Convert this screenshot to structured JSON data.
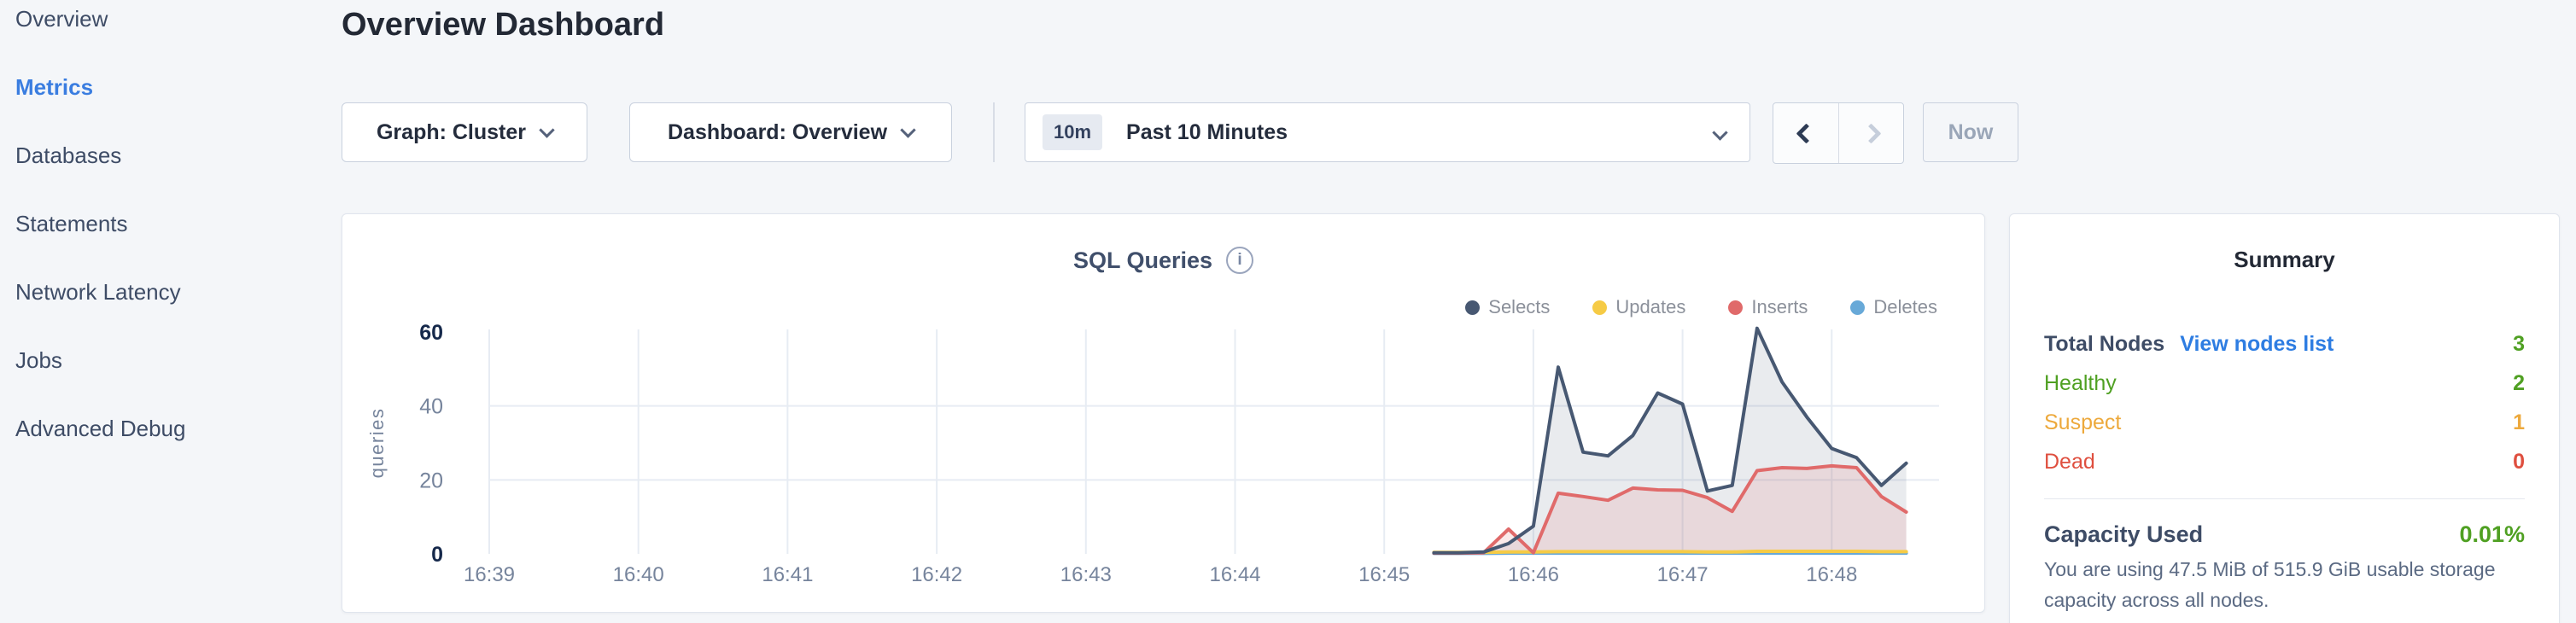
{
  "sidebar": {
    "items": [
      {
        "label": "Overview",
        "active": false
      },
      {
        "label": "Metrics",
        "active": true
      },
      {
        "label": "Databases",
        "active": false
      },
      {
        "label": "Statements",
        "active": false
      },
      {
        "label": "Network Latency",
        "active": false
      },
      {
        "label": "Jobs",
        "active": false
      },
      {
        "label": "Advanced Debug",
        "active": false
      }
    ]
  },
  "header": {
    "title": "Overview Dashboard"
  },
  "controls": {
    "graph_dropdown_label": "Graph: Cluster",
    "dashboard_dropdown_label": "Dashboard: Overview",
    "time_range": {
      "badge": "10m",
      "label": "Past 10 Minutes"
    },
    "now_button_label": "Now"
  },
  "chart": {
    "title": "SQL Queries",
    "info_glyph": "i"
  },
  "chart_data": {
    "type": "area",
    "title": "SQL Queries",
    "xlabel": "",
    "ylabel": "queries",
    "ylim": [
      0,
      60
    ],
    "yticks": [
      0,
      20,
      40,
      60
    ],
    "xticks": [
      "16:39",
      "16:40",
      "16:41",
      "16:42",
      "16:43",
      "16:44",
      "16:45",
      "16:46",
      "16:47",
      "16:48"
    ],
    "grid": true,
    "legend_position": "top-right",
    "x": [
      "16:45:20",
      "16:45:30",
      "16:45:40",
      "16:45:50",
      "16:46:00",
      "16:46:10",
      "16:46:20",
      "16:46:30",
      "16:46:40",
      "16:46:50",
      "16:47:00",
      "16:47:10",
      "16:47:20",
      "16:47:30",
      "16:47:40",
      "16:47:50",
      "16:48:00",
      "16:48:10",
      "16:48:20",
      "16:48:30"
    ],
    "series": [
      {
        "name": "Selects",
        "color": "#475872",
        "fill": "rgba(71,88,114,0.12)",
        "values": [
          0.3,
          0.3,
          0.5,
          2.8,
          7.5,
          50.5,
          27.5,
          26.5,
          32,
          43.5,
          40.5,
          17,
          18.5,
          61,
          46.5,
          37,
          28.5,
          26,
          18.5,
          24.5
        ]
      },
      {
        "name": "Updates",
        "color": "#f6cb45",
        "fill": "none",
        "values": [
          0.4,
          0.4,
          0.4,
          0.5,
          0.5,
          0.6,
          0.6,
          0.6,
          0.6,
          0.6,
          0.6,
          0.5,
          0.5,
          0.7,
          0.7,
          0.7,
          0.7,
          0.7,
          0.6,
          0.6
        ]
      },
      {
        "name": "Inserts",
        "color": "#e06a6a",
        "fill": "rgba(224,106,106,0.14)",
        "values": [
          0.2,
          0.2,
          0.3,
          6.7,
          0.3,
          16.4,
          15.5,
          14.5,
          17.8,
          17.3,
          17.2,
          15.2,
          11.5,
          22.5,
          23.3,
          23.1,
          23.8,
          23.3,
          15.5,
          11.3
        ]
      },
      {
        "name": "Deletes",
        "color": "#68a9d8",
        "fill": "none",
        "values": [
          0.15,
          0.15,
          0.15,
          0.2,
          0.2,
          0.2,
          0.2,
          0.2,
          0.2,
          0.2,
          0.2,
          0.2,
          0.2,
          0.2,
          0.2,
          0.2,
          0.2,
          0.2,
          0.2,
          0.2
        ]
      }
    ]
  },
  "summary": {
    "title": "Summary",
    "total_nodes": {
      "label": "Total Nodes",
      "link": "View nodes list",
      "value": "3"
    },
    "rows": [
      {
        "label": "Healthy",
        "value": "2"
      },
      {
        "label": "Suspect",
        "value": "1"
      },
      {
        "label": "Dead",
        "value": "0"
      }
    ],
    "capacity": {
      "label": "Capacity Used",
      "value": "0.01%",
      "description": "You are using 47.5 MiB of 515.9 GiB usable storage capacity across all nodes."
    }
  },
  "colors": {
    "accent": "#3a7de0",
    "link": "#2e7de2",
    "healthy": "#4fa022",
    "suspect": "#eda93c",
    "dead": "#df4f3f",
    "capacity_ok": "#4fa022",
    "grid": "#e7ecf3",
    "axis_strong": "#16294b",
    "axis_muted": "#76849c"
  }
}
